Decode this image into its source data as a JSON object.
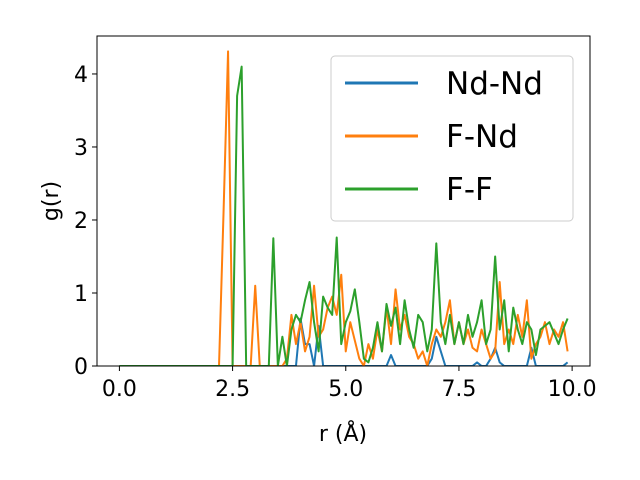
{
  "chart_data": {
    "type": "line",
    "xlabel": "r (Å)",
    "ylabel": "g(r)",
    "x": [
      0,
      0.1,
      0.2,
      0.3,
      0.4,
      0.5,
      0.6,
      0.7,
      0.8,
      0.9,
      1,
      1.1,
      1.2,
      1.3,
      1.4,
      1.5,
      1.6,
      1.7,
      1.8,
      1.9,
      2,
      2.1,
      2.2,
      2.3,
      2.4,
      2.5,
      2.6,
      2.7,
      2.8,
      2.9,
      3,
      3.1,
      3.2,
      3.3,
      3.4,
      3.5,
      3.6,
      3.7,
      3.8,
      3.9,
      4,
      4.1,
      4.2,
      4.3,
      4.4,
      4.5,
      4.6,
      4.7,
      4.8,
      4.9,
      5,
      5.1,
      5.2,
      5.3,
      5.4,
      5.5,
      5.6,
      5.7,
      5.8,
      5.9,
      6,
      6.1,
      6.2,
      6.3,
      6.4,
      6.5,
      6.6,
      6.7,
      6.8,
      6.9,
      7,
      7.1,
      7.2,
      7.3,
      7.4,
      7.5,
      7.6,
      7.7,
      7.8,
      7.9,
      8,
      8.1,
      8.2,
      8.3,
      8.4,
      8.5,
      8.6,
      8.7,
      8.8,
      8.9,
      9,
      9.1,
      9.2,
      9.3,
      9.4,
      9.5,
      9.6,
      9.7,
      9.8,
      9.9
    ],
    "series": [
      {
        "name": "Nd-Nd",
        "color": "#1f77b4",
        "values": [
          0,
          0,
          0,
          0,
          0,
          0,
          0,
          0,
          0,
          0,
          0,
          0,
          0,
          0,
          0,
          0,
          0,
          0,
          0,
          0,
          0,
          0,
          0,
          0,
          0,
          0,
          0,
          0,
          0,
          0,
          0,
          0,
          0,
          0,
          0,
          0,
          0,
          0,
          0,
          0,
          0.65,
          0.3,
          0.3,
          0,
          0.55,
          0,
          0,
          0,
          0,
          0,
          0,
          0,
          0,
          0,
          0,
          0,
          0,
          0,
          0,
          0,
          0.15,
          0,
          0,
          0,
          0,
          0,
          0,
          0,
          0,
          0.1,
          0.4,
          0.2,
          0,
          0,
          0,
          0,
          0,
          0,
          0,
          0.05,
          0,
          0,
          0.1,
          0.25,
          0.05,
          0,
          0,
          0,
          0,
          0,
          0,
          0.25,
          0,
          0,
          0,
          0,
          0,
          0,
          0,
          0.05
        ]
      },
      {
        "name": "F-Nd",
        "color": "#ff7f0e",
        "values": [
          0,
          0,
          0,
          0,
          0,
          0,
          0,
          0,
          0,
          0,
          0,
          0,
          0,
          0,
          0,
          0,
          0,
          0,
          0,
          0,
          0,
          0,
          0,
          2.1,
          4.31,
          0,
          0,
          0,
          0,
          0,
          1.1,
          0,
          0,
          0,
          0,
          0,
          0,
          0.1,
          0.7,
          0.3,
          0.6,
          0.2,
          0.4,
          1.1,
          0.4,
          0.5,
          0.8,
          0.95,
          0.7,
          1.25,
          0.2,
          0.6,
          0.35,
          0.1,
          0,
          0.3,
          0.1,
          0.5,
          0.2,
          0.8,
          0.3,
          1.05,
          0.5,
          0.7,
          0.4,
          0.3,
          0.1,
          0.2,
          0,
          0.3,
          0.5,
          0.4,
          0.6,
          0.9,
          0.3,
          0.6,
          0.3,
          0.5,
          0.25,
          0.2,
          0.5,
          0.3,
          0.1,
          0.2,
          1.15,
          0.3,
          0.5,
          0.3,
          0.7,
          0.4,
          0.9,
          0.1,
          0.3,
          0.4,
          0.6,
          0.3,
          0.5,
          0.4,
          0.6,
          0.2
        ]
      },
      {
        "name": "F-F",
        "color": "#2ca02c",
        "values": [
          0,
          0,
          0,
          0,
          0,
          0,
          0,
          0,
          0,
          0,
          0,
          0,
          0,
          0,
          0,
          0,
          0,
          0,
          0,
          0,
          0,
          0,
          0,
          0,
          0,
          0,
          3.7,
          4.1,
          0,
          0,
          0,
          0,
          0,
          0,
          1.75,
          0,
          0.4,
          0,
          0.5,
          0.7,
          0.6,
          0.9,
          1.15,
          0.6,
          0.2,
          0.95,
          0.8,
          0.7,
          1.76,
          0.3,
          0.6,
          0.75,
          1.05,
          0.6,
          0.1,
          0.05,
          0.25,
          0.6,
          0.2,
          0.85,
          0.55,
          0.8,
          0.3,
          0.9,
          0.5,
          0.25,
          0.7,
          0.6,
          0.2,
          0.5,
          1.68,
          0.6,
          0.3,
          0.7,
          0.3,
          0.6,
          0.3,
          0.7,
          0.4,
          0.6,
          0.9,
          0.3,
          0.5,
          1.5,
          0.5,
          0.9,
          0.2,
          0.8,
          0.5,
          0.3,
          0.6,
          0.5,
          0.15,
          0.5,
          0.55,
          0.6,
          0.45,
          0.3,
          0.5,
          0.65
        ]
      }
    ],
    "xlim": [
      -0.495,
      10.395
    ],
    "xticks": [
      {
        "value": 0,
        "label": "0.0"
      },
      2.5,
      {
        "value": 5,
        "label": "5.0"
      },
      7.5,
      {
        "value": 10,
        "label": "10.0"
      }
    ],
    "ylim": [
      0,
      4.52
    ],
    "yticks": [
      0,
      1,
      2,
      3,
      4
    ],
    "legend": "upper right"
  }
}
